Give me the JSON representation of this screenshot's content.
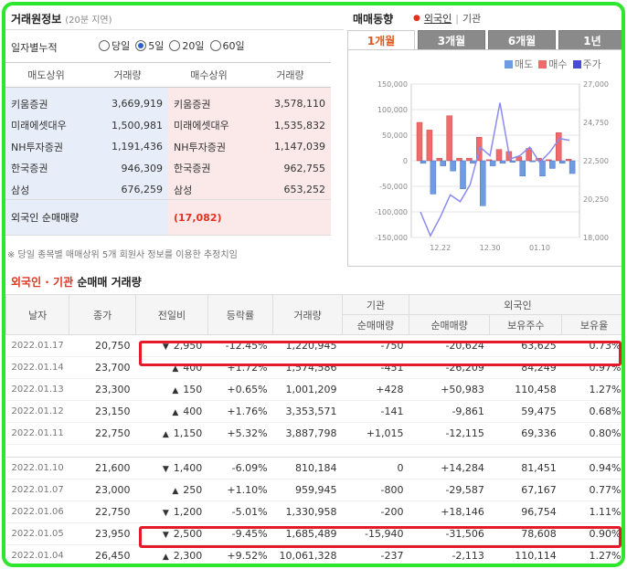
{
  "broker": {
    "title": "거래원정보",
    "delay": "(20분 지연)",
    "period_label": "일자별누적",
    "periods": [
      {
        "label": "당일",
        "selected": false
      },
      {
        "label": "5일",
        "selected": true
      },
      {
        "label": "20일",
        "selected": false
      },
      {
        "label": "60일",
        "selected": false
      }
    ],
    "headers": [
      "매도상위",
      "거래량",
      "매수상위",
      "거래량"
    ],
    "sell": [
      {
        "name": "키움증권",
        "vol": "3,669,919"
      },
      {
        "name": "미래에셋대우",
        "vol": "1,500,981"
      },
      {
        "name": "NH투자증권",
        "vol": "1,191,436"
      },
      {
        "name": "한국증권",
        "vol": "946,309"
      },
      {
        "name": "삼성",
        "vol": "676,259"
      }
    ],
    "buy": [
      {
        "name": "키움증권",
        "vol": "3,578,110"
      },
      {
        "name": "미래에셋대우",
        "vol": "1,535,832"
      },
      {
        "name": "NH투자증권",
        "vol": "1,147,039"
      },
      {
        "name": "한국증권",
        "vol": "962,755"
      },
      {
        "name": "삼성",
        "vol": "653,252"
      }
    ],
    "foreign_label": "외국인 순매매량",
    "foreign_value": "(17,082)",
    "note": "※ 당일 종목별 매매상위 5개 회원사 정보를 이용한 추정치임"
  },
  "trend": {
    "title": "매매동향",
    "links": [
      "외국인",
      "기관"
    ],
    "tabs": [
      {
        "label": "1개월",
        "active": true
      },
      {
        "label": "3개월",
        "active": false
      },
      {
        "label": "6개월",
        "active": false
      },
      {
        "label": "1년",
        "active": false
      }
    ],
    "legend": [
      {
        "label": "매도",
        "color": "#6f9be3"
      },
      {
        "label": "매수",
        "color": "#ef6b6b"
      },
      {
        "label": "주가",
        "color": "#4a4ad8"
      }
    ]
  },
  "chart_data": {
    "type": "bar",
    "x_ticks": [
      "12.22",
      "12.30",
      "01.10"
    ],
    "left_axis": [
      150000,
      100000,
      50000,
      0,
      -50000,
      -100000,
      -150000
    ],
    "left_axis_labels": [
      "150,000",
      "100,000",
      "50,000",
      "0",
      "-50,000",
      "-100,000",
      "-150,000"
    ],
    "right_axis": [
      27000,
      24750,
      22500,
      20250,
      18000
    ],
    "right_axis_labels": [
      "27,000",
      "24,750",
      "22,500",
      "20,250",
      "18,000"
    ],
    "ylim": [
      -150000,
      150000
    ],
    "y2lim": [
      18000,
      27000
    ],
    "series": [
      {
        "values": [
          75000,
          60000,
          5000,
          88000,
          5000,
          5000,
          46000,
          2000,
          22000,
          18000,
          8000,
          24000,
          5000,
          2000,
          55000,
          3000
        ]
      },
      {
        "values": [
          -5000,
          -65000,
          -10000,
          -20000,
          -55000,
          -5000,
          -88000,
          -10000,
          -5000,
          -3000,
          -30000,
          -2000,
          -30000,
          -15000,
          -5000,
          -25000
        ]
      },
      {
        "values": [
          19500,
          18100,
          19200,
          20500,
          20100,
          21100,
          23300,
          22800,
          25900,
          22600,
          22800,
          23300,
          22400,
          23000,
          23800,
          23700
        ]
      }
    ]
  },
  "netflow": {
    "title_a": "외국인",
    "title_sep": " · ",
    "title_b": "기관",
    "title_c": " 순매매 거래량",
    "headers": {
      "date": "날자",
      "close": "종가",
      "change": "전일비",
      "rate": "등락률",
      "volume": "거래량",
      "inst": "기관",
      "foreign": "외국인",
      "inst_net": "순매매량",
      "for_net": "순매매량",
      "hold": "보유주수",
      "ratio": "보유율"
    },
    "rows": [
      {
        "date": "2022.01.17",
        "close": "20,750",
        "dir": "down",
        "change": "2,950",
        "rate": "-12.45%",
        "volume": "1,220,945",
        "inst": "-750",
        "foreign": "-20,624",
        "hold": "63,625",
        "ratio": "0.73%"
      },
      {
        "date": "2022.01.14",
        "close": "23,700",
        "dir": "up",
        "change": "400",
        "rate": "+1.72%",
        "volume": "1,574,586",
        "inst": "-451",
        "foreign": "-26,209",
        "hold": "84,249",
        "ratio": "0.97%"
      },
      {
        "date": "2022.01.13",
        "close": "23,300",
        "dir": "up",
        "change": "150",
        "rate": "+0.65%",
        "volume": "1,001,209",
        "inst": "+428",
        "foreign": "+50,983",
        "hold": "110,458",
        "ratio": "1.27%"
      },
      {
        "date": "2022.01.12",
        "close": "23,150",
        "dir": "up",
        "change": "400",
        "rate": "+1.76%",
        "volume": "3,353,571",
        "inst": "-141",
        "foreign": "-9,861",
        "hold": "59,475",
        "ratio": "0.68%"
      },
      {
        "date": "2022.01.11",
        "close": "22,750",
        "dir": "up",
        "change": "1,150",
        "rate": "+5.32%",
        "volume": "3,887,798",
        "inst": "+1,015",
        "foreign": "-12,115",
        "hold": "69,336",
        "ratio": "0.80%"
      },
      {
        "date": "2022.01.10",
        "close": "21,600",
        "dir": "down",
        "change": "1,400",
        "rate": "-6.09%",
        "volume": "810,184",
        "inst": "0",
        "foreign": "+14,284",
        "hold": "81,451",
        "ratio": "0.94%"
      },
      {
        "date": "2022.01.07",
        "close": "23,000",
        "dir": "up",
        "change": "250",
        "rate": "+1.10%",
        "volume": "959,945",
        "inst": "-800",
        "foreign": "-29,587",
        "hold": "67,167",
        "ratio": "0.77%"
      },
      {
        "date": "2022.01.06",
        "close": "22,750",
        "dir": "down",
        "change": "1,200",
        "rate": "-5.01%",
        "volume": "1,330,958",
        "inst": "-200",
        "foreign": "+18,146",
        "hold": "96,754",
        "ratio": "1.11%"
      },
      {
        "date": "2022.01.05",
        "close": "23,950",
        "dir": "down",
        "change": "2,500",
        "rate": "-9.45%",
        "volume": "1,685,489",
        "inst": "-15,940",
        "foreign": "-31,506",
        "hold": "78,608",
        "ratio": "0.90%"
      },
      {
        "date": "2022.01.04",
        "close": "26,450",
        "dir": "up",
        "change": "2,300",
        "rate": "+9.52%",
        "volume": "10,061,328",
        "inst": "-237",
        "foreign": "-2,113",
        "hold": "110,114",
        "ratio": "1.27%"
      }
    ]
  }
}
